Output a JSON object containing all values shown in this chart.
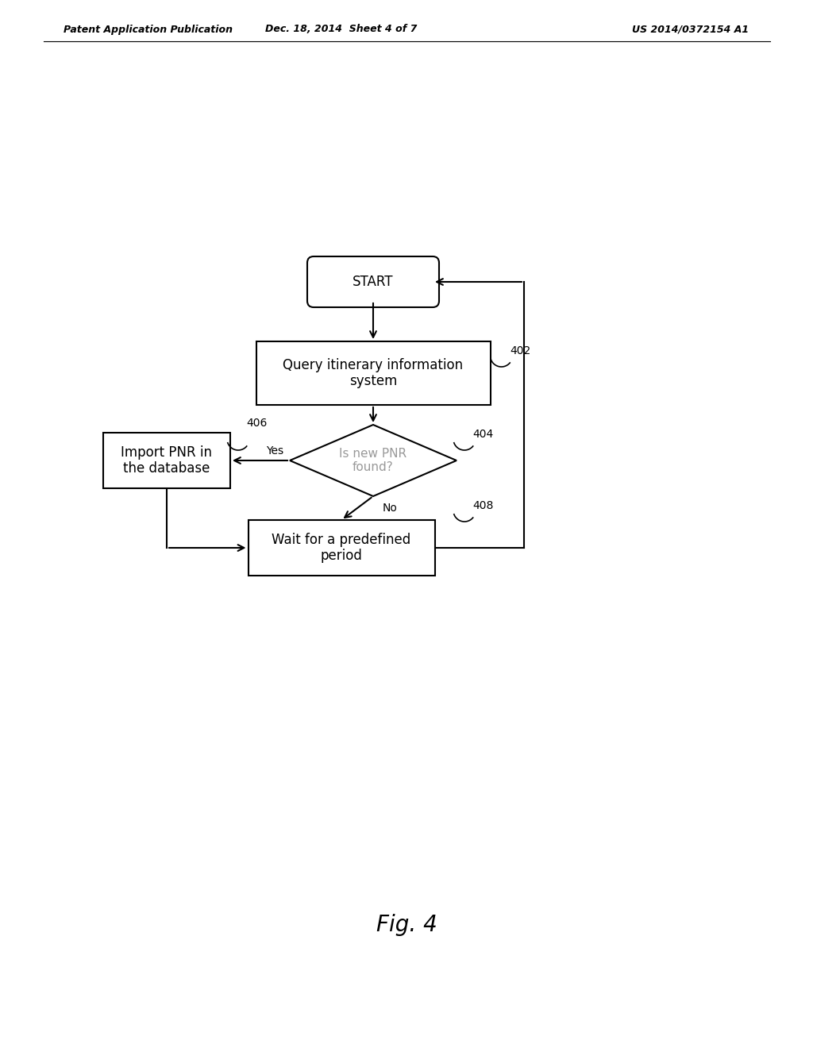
{
  "bg_color": "#ffffff",
  "header_left": "Patent Application Publication",
  "header_center": "Dec. 18, 2014  Sheet 4 of 7",
  "header_right": "US 2014/0372154 A1",
  "fig_label": "Fig. 4",
  "start_text": "START",
  "box402_text": "Query itinerary information\nsystem",
  "box402_label": "402",
  "diamond404_text": "Is new PNR\nfound?",
  "diamond404_label": "404",
  "box406_text": "Import PNR in\nthe database",
  "box406_label": "406",
  "box408_text": "Wait for a predefined\nperiod",
  "box408_label": "408",
  "yes_text": "Yes",
  "no_text": "No",
  "font_size_node": 12,
  "font_size_header": 9,
  "font_size_label": 10,
  "font_size_fig": 20,
  "line_color": "#000000",
  "text_color": "#000000",
  "diamond_text_color": "#999999",
  "line_width": 1.5
}
